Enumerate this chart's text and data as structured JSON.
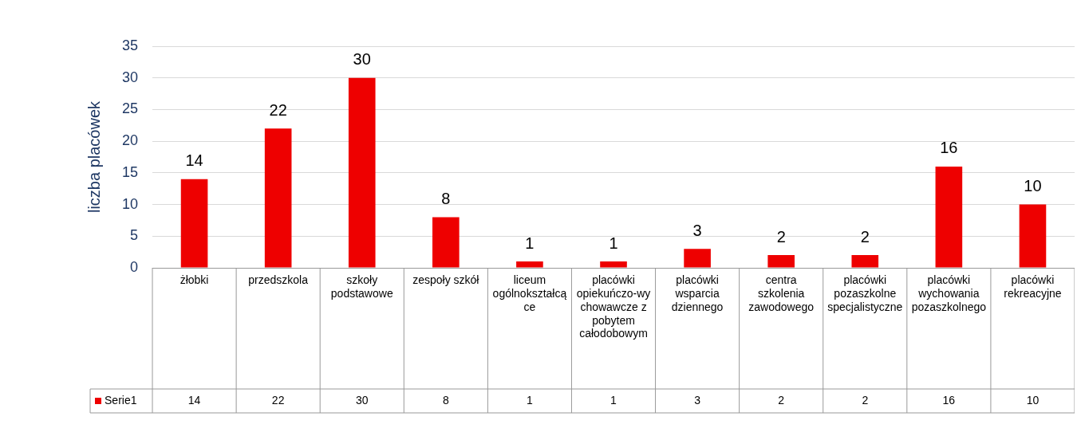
{
  "chart_data": {
    "type": "bar",
    "ylabel": "liczba placówek",
    "categories": [
      "żłobki",
      "przedszkola",
      "szkoły podstawowe",
      "zespoły szkół",
      "liceum ogólnokształcące",
      "placówki opiekuńczo-wychowawcze z pobytem całodobowym",
      "placówki wsparcia dziennego",
      "centra szkolenia zawodowego",
      "placówki pozaszkolne specjalistyczne",
      "placówki wychowania pozaszkolnego",
      "placówki rekreacyjne"
    ],
    "series": [
      {
        "name": "Serie1",
        "color": "#ee0000",
        "values": [
          14,
          22,
          30,
          8,
          1,
          1,
          3,
          2,
          2,
          16,
          10
        ],
        "value_labels": [
          "14",
          "22",
          "30",
          "8",
          "1",
          "1",
          "3",
          "2",
          "2",
          "16",
          "10"
        ]
      }
    ],
    "ylim": [
      0,
      35
    ],
    "yticks": [
      0,
      5,
      10,
      15,
      20,
      25,
      30,
      35
    ],
    "grid": "y",
    "annotations": [
      "14",
      "22",
      "30",
      "8",
      "1",
      "1",
      "3",
      "2",
      "2",
      "16",
      "10"
    ]
  }
}
